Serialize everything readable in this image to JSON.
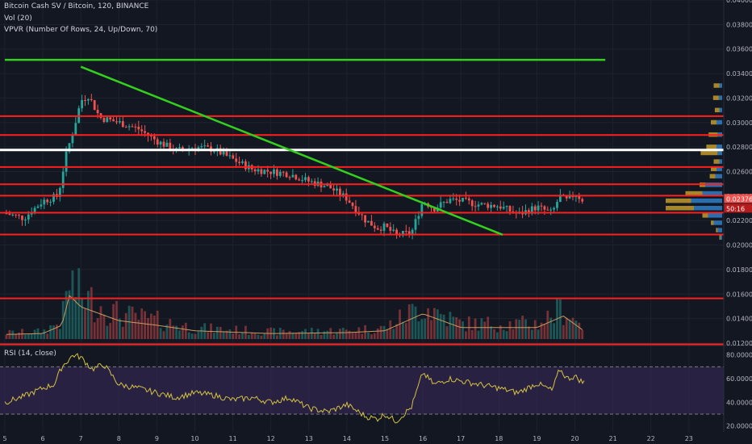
{
  "header": {
    "symbol_line": "Bitcoin Cash SV / Bitcoin, 120, BINANCE",
    "vol_line": "Vol (20)",
    "vpvr_line": "VPVR (Number Of Rows, 24, Up/Down, 70)"
  },
  "rsi_panel": {
    "label": "RSI (14, close)"
  },
  "price_badge": {
    "price": "0.023768",
    "countdown": "50:16"
  },
  "colors": {
    "background": "#131722",
    "grid": "#1e222d",
    "up": "#26a69a",
    "down": "#ef5350",
    "horizontal_line": "#ff1f1f",
    "white_line": "#ffffff",
    "trendline": "#33d11e",
    "rsi_line": "#d4c242",
    "rsi_band": "#3a2a5c",
    "vpvr_up": "#2e7fc8",
    "vpvr_down": "#c29a2a"
  },
  "chart_data": {
    "type": "candlestick",
    "xlabel": "",
    "ylabel": "",
    "ylim": [
      0.0118,
      0.04
    ],
    "y_ticks": [
      "0.040000",
      "0.038000",
      "0.036000",
      "0.034000",
      "0.032000",
      "0.030000",
      "0.028000",
      "0.026000",
      "0.024000",
      "0.022000",
      "0.020000",
      "0.018000",
      "0.016000",
      "0.014000",
      "0.012000"
    ],
    "x_ticks": [
      "5",
      "6",
      "7",
      "8",
      "9",
      "10",
      "11",
      "12",
      "13",
      "14",
      "15",
      "16",
      "17",
      "18",
      "19",
      "20",
      "21",
      "22",
      "23"
    ],
    "price_path": [
      {
        "day": 5.0,
        "price": 0.0226
      },
      {
        "day": 5.5,
        "price": 0.0222
      },
      {
        "day": 6.0,
        "price": 0.0236
      },
      {
        "day": 6.4,
        "price": 0.024
      },
      {
        "day": 6.6,
        "price": 0.0272
      },
      {
        "day": 6.9,
        "price": 0.0305
      },
      {
        "day": 7.0,
        "price": 0.0318
      },
      {
        "day": 7.2,
        "price": 0.0322
      },
      {
        "day": 7.5,
        "price": 0.0304
      },
      {
        "day": 8.0,
        "price": 0.03
      },
      {
        "day": 8.5,
        "price": 0.0295
      },
      {
        "day": 9.0,
        "price": 0.0285
      },
      {
        "day": 9.5,
        "price": 0.0277
      },
      {
        "day": 10.0,
        "price": 0.028
      },
      {
        "day": 10.5,
        "price": 0.0278
      },
      {
        "day": 11.0,
        "price": 0.027
      },
      {
        "day": 11.5,
        "price": 0.0262
      },
      {
        "day": 12.0,
        "price": 0.026
      },
      {
        "day": 12.5,
        "price": 0.0258
      },
      {
        "day": 13.0,
        "price": 0.0252
      },
      {
        "day": 13.5,
        "price": 0.0248
      },
      {
        "day": 14.0,
        "price": 0.0238
      },
      {
        "day": 14.5,
        "price": 0.022
      },
      {
        "day": 14.8,
        "price": 0.0214
      },
      {
        "day": 15.0,
        "price": 0.0215
      },
      {
        "day": 15.3,
        "price": 0.0208
      },
      {
        "day": 15.7,
        "price": 0.021
      },
      {
        "day": 16.0,
        "price": 0.0236
      },
      {
        "day": 16.3,
        "price": 0.023
      },
      {
        "day": 16.7,
        "price": 0.0237
      },
      {
        "day": 17.0,
        "price": 0.0236
      },
      {
        "day": 17.5,
        "price": 0.0233
      },
      {
        "day": 18.0,
        "price": 0.0232
      },
      {
        "day": 18.5,
        "price": 0.0225
      },
      {
        "day": 19.0,
        "price": 0.0231
      },
      {
        "day": 19.4,
        "price": 0.0226
      },
      {
        "day": 19.6,
        "price": 0.024
      },
      {
        "day": 19.8,
        "price": 0.0236
      },
      {
        "day": 20.0,
        "price": 0.0242
      },
      {
        "day": 20.2,
        "price": 0.0237
      }
    ],
    "horizontal_levels": [
      {
        "price": 0.03052,
        "color": "red"
      },
      {
        "price": 0.02898,
        "color": "red"
      },
      {
        "price": 0.02776,
        "color": "white"
      },
      {
        "price": 0.02637,
        "color": "red"
      },
      {
        "price": 0.02496,
        "color": "red"
      },
      {
        "price": 0.02403,
        "color": "red"
      },
      {
        "price": 0.02264,
        "color": "red"
      },
      {
        "price": 0.02086,
        "color": "red"
      },
      {
        "price": 0.01565,
        "color": "red"
      },
      {
        "price": 0.0119,
        "color": "red"
      }
    ],
    "resistance_line": {
      "price": 0.03512,
      "from_day": 5.0,
      "to_day": 20.8
    },
    "trendline": {
      "from": {
        "day": 7.0,
        "price": 0.03455
      },
      "to": {
        "day": 18.1,
        "price": 0.02084
      }
    },
    "volume_path": [
      {
        "day": 5.0,
        "v": 0.1
      },
      {
        "day": 6.0,
        "v": 0.12
      },
      {
        "day": 6.5,
        "v": 0.3
      },
      {
        "day": 6.7,
        "v": 0.95
      },
      {
        "day": 7.0,
        "v": 0.7
      },
      {
        "day": 7.5,
        "v": 0.55
      },
      {
        "day": 8.0,
        "v": 0.4
      },
      {
        "day": 9.0,
        "v": 0.3
      },
      {
        "day": 10.0,
        "v": 0.18
      },
      {
        "day": 12.0,
        "v": 0.12
      },
      {
        "day": 14.0,
        "v": 0.14
      },
      {
        "day": 15.0,
        "v": 0.18
      },
      {
        "day": 16.0,
        "v": 0.55
      },
      {
        "day": 17.0,
        "v": 0.25
      },
      {
        "day": 19.0,
        "v": 0.25
      },
      {
        "day": 19.7,
        "v": 0.5
      },
      {
        "day": 20.2,
        "v": 0.2
      }
    ],
    "vpvr_rows": [
      {
        "price": 0.033,
        "up": 0.05,
        "down": 0.1
      },
      {
        "price": 0.032,
        "up": 0.06,
        "down": 0.1
      },
      {
        "price": 0.031,
        "up": 0.05,
        "down": 0.08
      },
      {
        "price": 0.03,
        "up": 0.1,
        "down": 0.1
      },
      {
        "price": 0.029,
        "up": 0.08,
        "down": 0.16
      },
      {
        "price": 0.028,
        "up": 0.1,
        "down": 0.18
      },
      {
        "price": 0.0275,
        "up": 0.08,
        "down": 0.3
      },
      {
        "price": 0.0268,
        "up": 0.05,
        "down": 0.1
      },
      {
        "price": 0.0262,
        "up": 0.1,
        "down": 0.1
      },
      {
        "price": 0.0256,
        "up": 0.12,
        "down": 0.1
      },
      {
        "price": 0.0249,
        "up": 0.3,
        "down": 0.1
      },
      {
        "price": 0.0242,
        "up": 0.35,
        "down": 0.3
      },
      {
        "price": 0.0236,
        "up": 0.55,
        "down": 0.45
      },
      {
        "price": 0.023,
        "up": 0.5,
        "down": 0.5
      },
      {
        "price": 0.0224,
        "up": 0.25,
        "down": 0.1
      },
      {
        "price": 0.0218,
        "up": 0.15,
        "down": 0.05
      },
      {
        "price": 0.0212,
        "up": 0.08,
        "down": 0.03
      },
      {
        "price": 0.0206,
        "up": 0.03,
        "down": 0.02
      }
    ],
    "rsi": {
      "ylim": [
        15,
        88
      ],
      "ticks": [
        "80.0000",
        "60.0000",
        "40.0000",
        "20.0000"
      ],
      "levels": [
        70,
        30
      ],
      "path": [
        {
          "day": 5.0,
          "v": 40
        },
        {
          "day": 5.5,
          "v": 45
        },
        {
          "day": 6.0,
          "v": 52
        },
        {
          "day": 6.3,
          "v": 55
        },
        {
          "day": 6.5,
          "v": 70
        },
        {
          "day": 6.8,
          "v": 80
        },
        {
          "day": 7.0,
          "v": 78
        },
        {
          "day": 7.3,
          "v": 68
        },
        {
          "day": 7.6,
          "v": 72
        },
        {
          "day": 8.0,
          "v": 55
        },
        {
          "day": 8.5,
          "v": 52
        },
        {
          "day": 9.0,
          "v": 48
        },
        {
          "day": 9.5,
          "v": 44
        },
        {
          "day": 10.0,
          "v": 48
        },
        {
          "day": 10.5,
          "v": 46
        },
        {
          "day": 11.0,
          "v": 42
        },
        {
          "day": 11.5,
          "v": 44
        },
        {
          "day": 12.0,
          "v": 40
        },
        {
          "day": 12.5,
          "v": 44
        },
        {
          "day": 13.0,
          "v": 35
        },
        {
          "day": 13.5,
          "v": 32
        },
        {
          "day": 14.0,
          "v": 38
        },
        {
          "day": 14.5,
          "v": 28
        },
        {
          "day": 14.8,
          "v": 26
        },
        {
          "day": 15.0,
          "v": 30
        },
        {
          "day": 15.3,
          "v": 24
        },
        {
          "day": 15.7,
          "v": 36
        },
        {
          "day": 16.0,
          "v": 65
        },
        {
          "day": 16.3,
          "v": 55
        },
        {
          "day": 16.7,
          "v": 60
        },
        {
          "day": 17.0,
          "v": 58
        },
        {
          "day": 17.5,
          "v": 55
        },
        {
          "day": 18.0,
          "v": 52
        },
        {
          "day": 18.5,
          "v": 48
        },
        {
          "day": 19.0,
          "v": 56
        },
        {
          "day": 19.4,
          "v": 50
        },
        {
          "day": 19.6,
          "v": 68
        },
        {
          "day": 19.8,
          "v": 60
        },
        {
          "day": 20.0,
          "v": 62
        },
        {
          "day": 20.2,
          "v": 57
        }
      ]
    }
  }
}
